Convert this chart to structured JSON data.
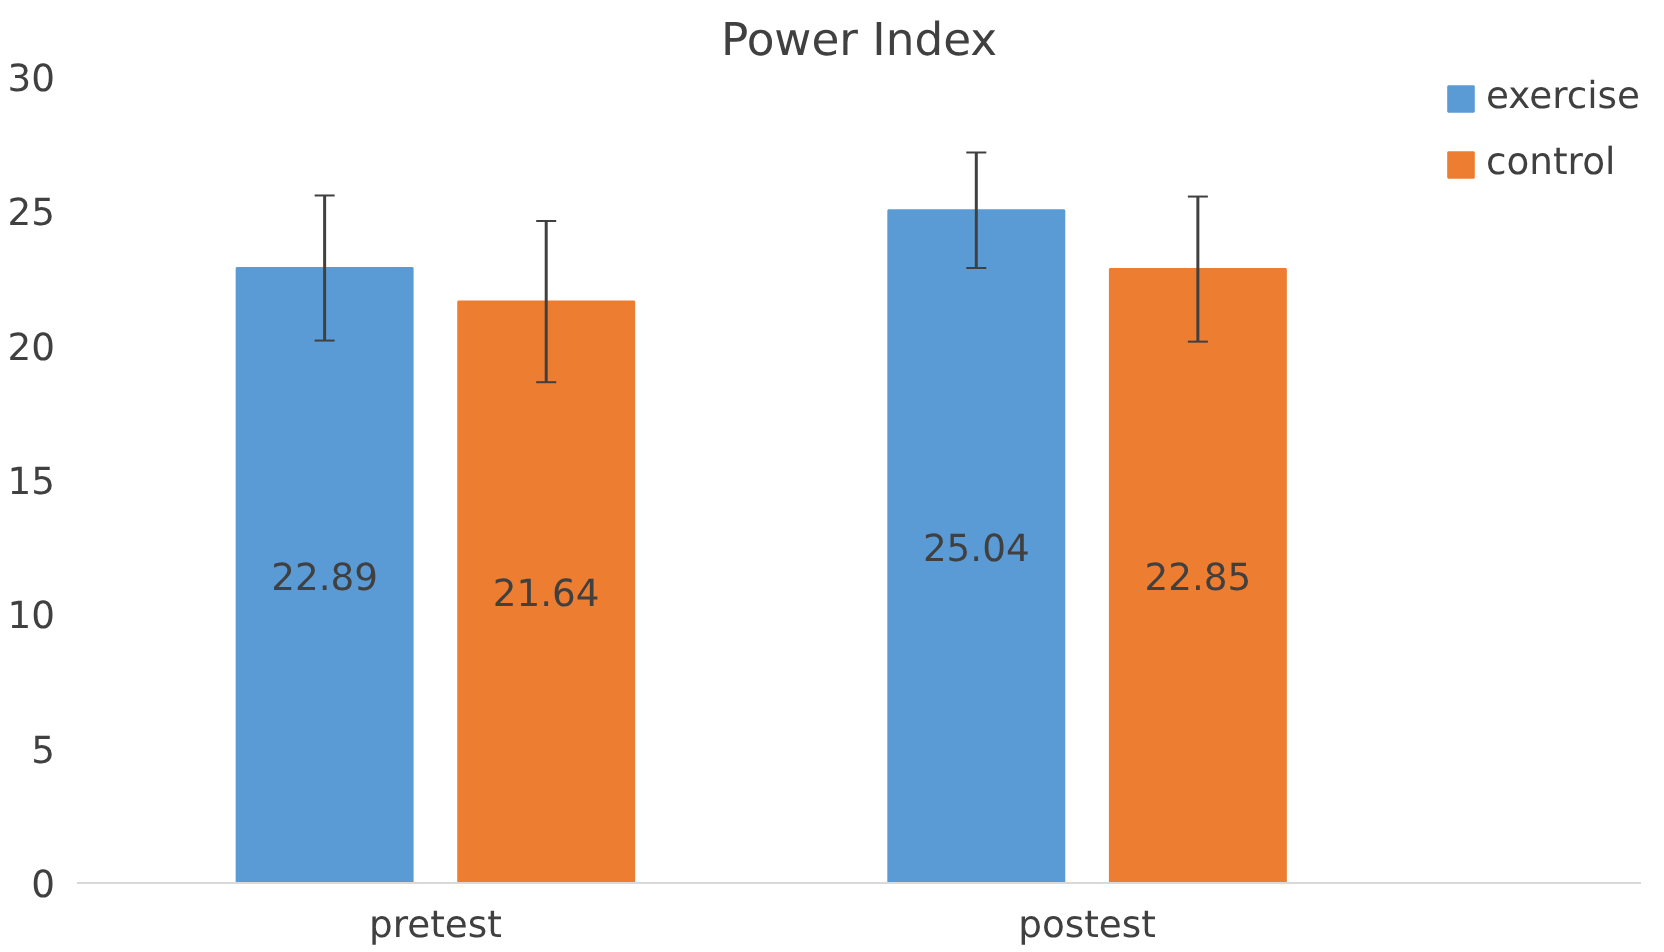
{
  "chart_data": {
    "type": "bar",
    "title": "Power Index",
    "categories": [
      "pretest",
      "postest"
    ],
    "series": [
      {
        "name": "exercise",
        "color": "#5b9bd5",
        "values": [
          22.89,
          25.04
        ],
        "errors": [
          2.7,
          2.15
        ]
      },
      {
        "name": "control",
        "color": "#ed7d31",
        "values": [
          21.64,
          22.85
        ],
        "errors": [
          3.0,
          2.7
        ]
      }
    ],
    "ylim": [
      0,
      30
    ],
    "yticks": [
      0,
      5,
      10,
      15,
      20,
      25,
      30
    ],
    "grid": false,
    "legend": "top right",
    "data_labels": true
  }
}
